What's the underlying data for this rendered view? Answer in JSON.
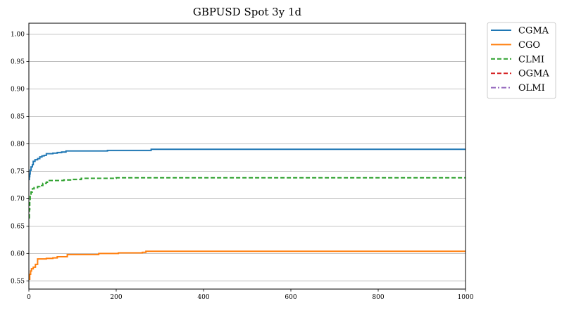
{
  "chart_data": {
    "type": "line",
    "title": "GBPUSD Spot 3y 1d",
    "xlabel": "",
    "ylabel": "",
    "xlim": [
      0,
      1000
    ],
    "ylim": [
      0.535,
      1.02
    ],
    "grid": "horizontal",
    "legend_placement": "outside-top-right",
    "x_ticks": [
      0,
      200,
      400,
      600,
      800,
      1000
    ],
    "x_tick_labels": [
      "0",
      "200",
      "400",
      "600",
      "800",
      "1000"
    ],
    "y_ticks": [
      0.55,
      0.6,
      0.65,
      0.7,
      0.75,
      0.8,
      0.85,
      0.9,
      0.95,
      1.0
    ],
    "y_tick_labels": [
      "0.55",
      "0.60",
      "0.65",
      "0.70",
      "0.75",
      "0.80",
      "0.85",
      "0.90",
      "0.95",
      "1.00"
    ],
    "series": [
      {
        "name": "CGMA",
        "color": "#1f77b4",
        "style": "solid",
        "points": [
          [
            0,
            0.735
          ],
          [
            1,
            0.74
          ],
          [
            2,
            0.745
          ],
          [
            3,
            0.752
          ],
          [
            5,
            0.758
          ],
          [
            8,
            0.762
          ],
          [
            10,
            0.768
          ],
          [
            14,
            0.771
          ],
          [
            20,
            0.773
          ],
          [
            25,
            0.776
          ],
          [
            30,
            0.778
          ],
          [
            35,
            0.779
          ],
          [
            40,
            0.782
          ],
          [
            55,
            0.783
          ],
          [
            65,
            0.784
          ],
          [
            75,
            0.785
          ],
          [
            85,
            0.787
          ],
          [
            180,
            0.788
          ],
          [
            280,
            0.79
          ],
          [
            1000,
            0.79
          ]
        ]
      },
      {
        "name": "CGO",
        "color": "#ff7f0e",
        "style": "solid",
        "points": [
          [
            0,
            0.553
          ],
          [
            2,
            0.562
          ],
          [
            4,
            0.568
          ],
          [
            6,
            0.572
          ],
          [
            10,
            0.575
          ],
          [
            15,
            0.58
          ],
          [
            20,
            0.59
          ],
          [
            40,
            0.591
          ],
          [
            55,
            0.592
          ],
          [
            60,
            0.592
          ],
          [
            65,
            0.594
          ],
          [
            85,
            0.594
          ],
          [
            88,
            0.598
          ],
          [
            160,
            0.6
          ],
          [
            205,
            0.601
          ],
          [
            260,
            0.602
          ],
          [
            268,
            0.604
          ],
          [
            1000,
            0.604
          ]
        ]
      },
      {
        "name": "CLMI",
        "color": "#2ca02c",
        "style": "dashed",
        "points": [
          [
            0,
            0.665
          ],
          [
            1,
            0.68
          ],
          [
            2,
            0.695
          ],
          [
            3,
            0.705
          ],
          [
            5,
            0.712
          ],
          [
            8,
            0.718
          ],
          [
            12,
            0.72
          ],
          [
            20,
            0.722
          ],
          [
            25,
            0.724
          ],
          [
            32,
            0.728
          ],
          [
            40,
            0.73
          ],
          [
            45,
            0.733
          ],
          [
            80,
            0.734
          ],
          [
            100,
            0.735
          ],
          [
            120,
            0.737
          ],
          [
            200,
            0.738
          ],
          [
            1000,
            0.738
          ]
        ]
      },
      {
        "name": "OGMA",
        "color": "#d62728",
        "style": "dashed",
        "points": []
      },
      {
        "name": "OLMI",
        "color": "#9467bd",
        "style": "dashdot",
        "points": []
      }
    ]
  }
}
